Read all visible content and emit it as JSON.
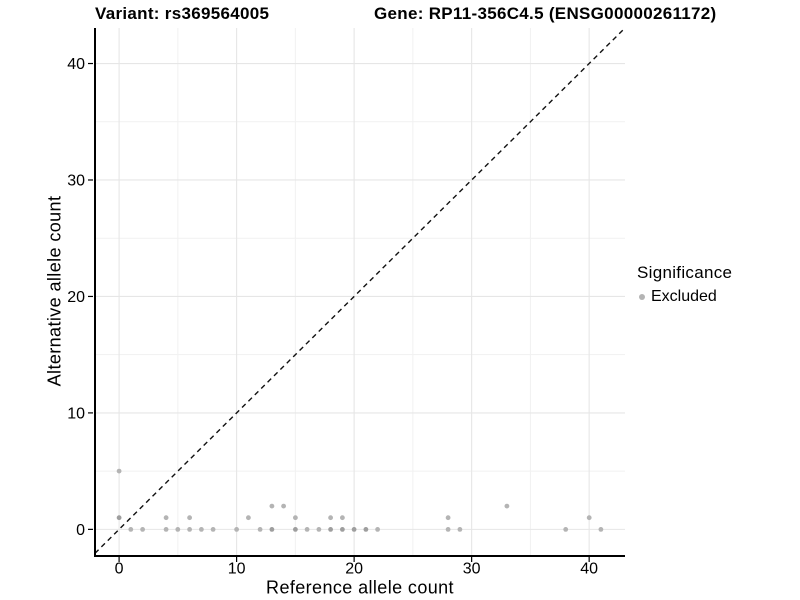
{
  "chart_data": {
    "type": "scatter",
    "title_left": "Variant: rs369564005",
    "title_right": "Gene: RP11-356C4.5 (ENSG00000261172)",
    "xlabel": "Reference allele count",
    "ylabel": "Alternative allele count",
    "xlim": [
      -2.05,
      43.05
    ],
    "ylim": [
      -2.2,
      43.05
    ],
    "x_major_ticks": [
      0,
      10,
      20,
      30,
      40
    ],
    "x_minor_ticks": [
      5,
      15,
      25,
      35
    ],
    "y_major_ticks": [
      0,
      10,
      20,
      30,
      40
    ],
    "y_minor_ticks": [
      5,
      15,
      25,
      35
    ],
    "grid": true,
    "identity_line": {
      "style": "dashed",
      "equation": "y = x",
      "from": -2.05,
      "to": 43.05
    },
    "legend": {
      "title": "Significance",
      "position": "right",
      "items": [
        {
          "label": "Excluded",
          "color": "#b4b4b4"
        }
      ]
    },
    "series": [
      {
        "name": "Excluded",
        "color": "#b4b4b4",
        "overlap_color": "#9e9e9e",
        "points_xyn": [
          [
            0,
            1,
            2
          ],
          [
            0,
            5,
            1
          ],
          [
            1,
            0,
            1
          ],
          [
            2,
            0,
            1
          ],
          [
            4,
            0,
            1
          ],
          [
            4,
            1,
            1
          ],
          [
            5,
            0,
            1
          ],
          [
            6,
            0,
            1
          ],
          [
            6,
            1,
            1
          ],
          [
            7,
            0,
            1
          ],
          [
            8,
            0,
            1
          ],
          [
            10,
            0,
            1
          ],
          [
            11,
            1,
            1
          ],
          [
            12,
            0,
            1
          ],
          [
            13,
            0,
            2
          ],
          [
            13,
            2,
            1
          ],
          [
            14,
            2,
            1
          ],
          [
            15,
            0,
            2
          ],
          [
            15,
            1,
            1
          ],
          [
            16,
            0,
            1
          ],
          [
            17,
            0,
            1
          ],
          [
            18,
            0,
            2
          ],
          [
            18,
            1,
            1
          ],
          [
            19,
            0,
            2
          ],
          [
            19,
            1,
            1
          ],
          [
            20,
            0,
            2
          ],
          [
            21,
            0,
            2
          ],
          [
            22,
            0,
            1
          ],
          [
            28,
            0,
            1
          ],
          [
            28,
            1,
            1
          ],
          [
            29,
            0,
            1
          ],
          [
            33,
            2,
            1
          ],
          [
            38,
            0,
            1
          ],
          [
            40,
            1,
            1
          ],
          [
            41,
            0,
            1
          ]
        ]
      }
    ],
    "colors": {
      "background": "#ffffff",
      "grid_major": "#e6e6e6",
      "grid_minor": "#f1f1f1",
      "axis": "#000000",
      "text": "#000000",
      "identity_line": "#111111"
    }
  }
}
